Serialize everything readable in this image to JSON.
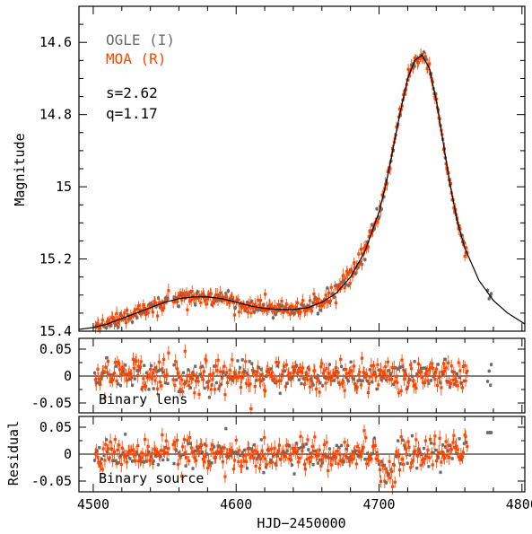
{
  "legend": {
    "ogle_label": "OGLE (I)",
    "moa_label": "MOA (R)"
  },
  "params": {
    "s": "s=2.62",
    "q": "q=1.17"
  },
  "labels": {
    "ylabel_top": "Magnitude",
    "ylabel_residual": "Residual",
    "xlabel": "HJD−2450000",
    "panel2": "Binary lens",
    "panel3": "Binary source"
  },
  "colors": {
    "ogle": "#6b6b6b",
    "moa": "#ff4500",
    "model": "#000000"
  },
  "chart_data": [
    {
      "type": "scatter",
      "panel": "light-curve",
      "xlabel": "HJD−2450000",
      "ylabel": "Magnitude",
      "xlim": [
        4490,
        4802
      ],
      "ylim": [
        15.4,
        14.5
      ],
      "y_inverted": true,
      "xticks": [
        4500,
        4600,
        4700,
        4800
      ],
      "yticks": [
        14.6,
        14.8,
        15,
        15.2,
        15.4
      ],
      "ytick_labels": [
        "14.6",
        "14.8",
        "15",
        "15.2",
        "15.4"
      ],
      "series": [
        {
          "name": "OGLE (I)",
          "color": "#6b6b6b",
          "marker": "dot with error bar"
        },
        {
          "name": "MOA (R)",
          "color": "#ff4500",
          "marker": "dot with error bar"
        },
        {
          "name": "",
          "color": "#000000",
          "marker": "model line"
        }
      ],
      "model_curve": {
        "x": [
          4490,
          4500,
          4510,
          4520,
          4530,
          4540,
          4550,
          4560,
          4570,
          4580,
          4590,
          4600,
          4610,
          4620,
          4630,
          4640,
          4650,
          4660,
          4670,
          4680,
          4690,
          4700,
          4705,
          4710,
          4715,
          4720,
          4725,
          4730,
          4735,
          4740,
          4745,
          4750,
          4755,
          4760,
          4770,
          4780,
          4790,
          4802
        ],
        "y": [
          15.395,
          15.39,
          15.38,
          15.365,
          15.35,
          15.335,
          15.32,
          15.31,
          15.305,
          15.305,
          15.31,
          15.32,
          15.33,
          15.337,
          15.34,
          15.34,
          15.335,
          15.32,
          15.295,
          15.25,
          15.18,
          15.07,
          14.99,
          14.89,
          14.79,
          14.7,
          14.65,
          14.635,
          14.67,
          14.76,
          14.88,
          15.0,
          15.1,
          15.17,
          15.26,
          15.315,
          15.35,
          15.38
        ]
      },
      "annotations": [
        "s=2.62",
        "q=1.17"
      ]
    },
    {
      "type": "scatter",
      "panel": "residual-binary-lens",
      "label": "Binary lens",
      "xlim": [
        4490,
        4802
      ],
      "ylim": [
        -0.09,
        0.09
      ],
      "yticks": [
        0.05,
        0,
        -0.05
      ],
      "ytick_labels": [
        "0.05",
        "0",
        "-0.05"
      ],
      "series": [
        {
          "name": "OGLE (I)",
          "color": "#6b6b6b"
        },
        {
          "name": "MOA (R)",
          "color": "#ff4500"
        }
      ],
      "data_x_range": [
        4500,
        4780
      ],
      "scatter_sigma_mag": 0.02
    },
    {
      "type": "scatter",
      "panel": "residual-binary-source",
      "label": "Binary source",
      "xlim": [
        4490,
        4802
      ],
      "ylim": [
        -0.09,
        0.09
      ],
      "yticks": [
        0.05,
        0,
        -0.05
      ],
      "ytick_labels": [
        "0.05",
        "0",
        "-0.05"
      ],
      "series": [
        {
          "name": "OGLE (I)",
          "color": "#6b6b6b"
        },
        {
          "name": "MOA (R)",
          "color": "#ff4500"
        }
      ],
      "data_x_range": [
        4500,
        4780
      ],
      "scatter_sigma_mag": 0.02,
      "outlier_points": [
        {
          "x": 4778,
          "y": 0.04
        }
      ]
    }
  ]
}
